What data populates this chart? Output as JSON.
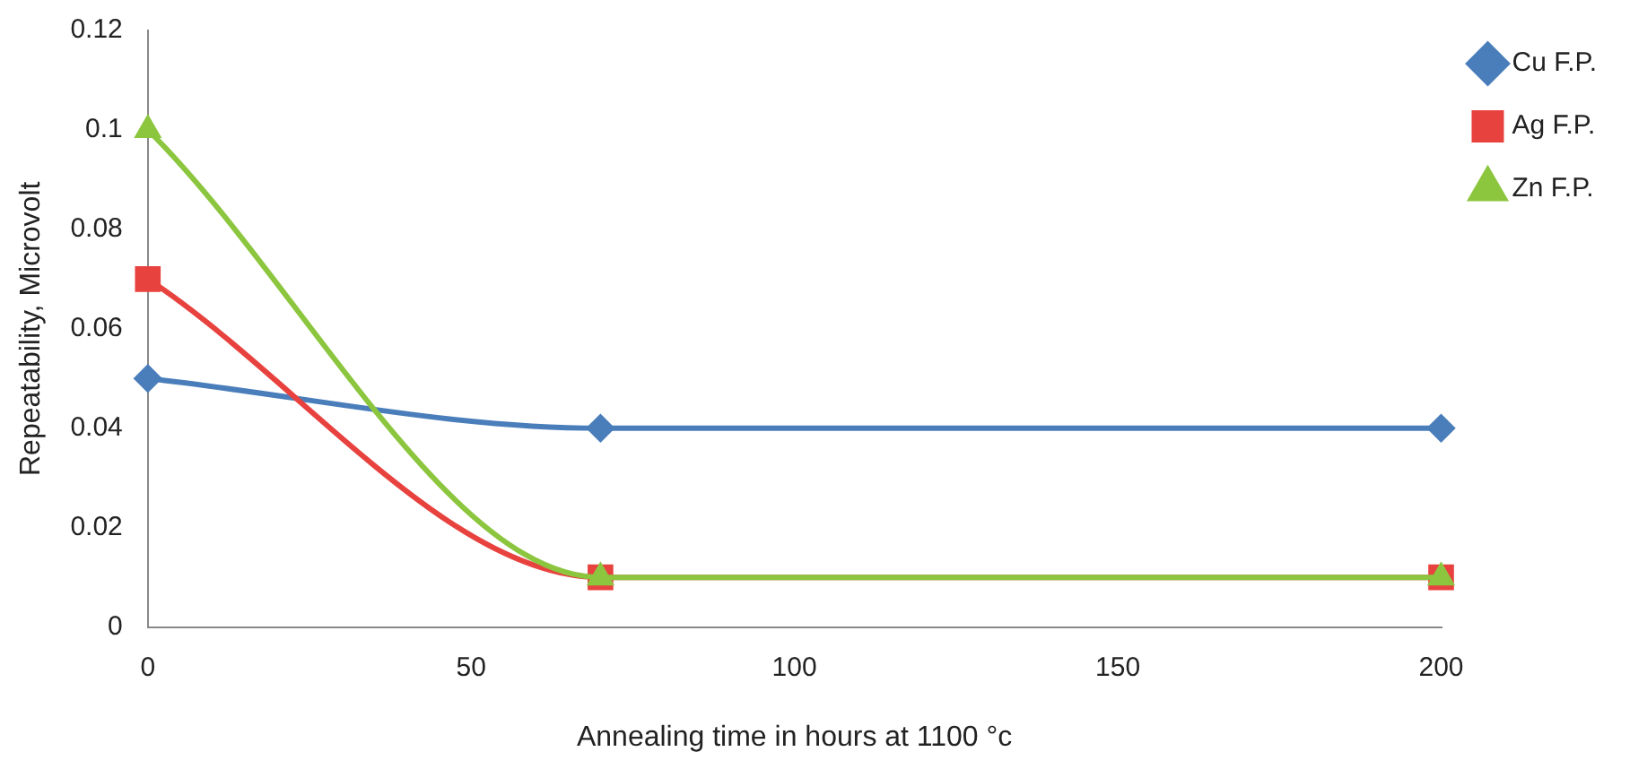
{
  "chart_data": {
    "type": "line",
    "xlabel": "Annealing time in hours at 1100 °c",
    "ylabel": "Repeatability, Microvolt",
    "x": [
      0,
      70,
      200
    ],
    "series": [
      {
        "name": "Cu F.P.",
        "color": "#4a7ebb",
        "marker": "diamond",
        "values": [
          0.05,
          0.04,
          0.04
        ]
      },
      {
        "name": "Ag F.P.",
        "color": "#e8423f",
        "marker": "square",
        "values": [
          0.07,
          0.01,
          0.01
        ]
      },
      {
        "name": "Zn F.P.",
        "color": "#8cc63f",
        "marker": "triangle",
        "values": [
          0.1,
          0.01,
          0.01
        ]
      }
    ],
    "xlim": [
      0,
      200
    ],
    "xticks": [
      0,
      50,
      100,
      150,
      200
    ],
    "ylim": [
      0,
      0.12
    ],
    "yticks": [
      0,
      0.02,
      0.04,
      0.06,
      0.08,
      0.1,
      0.12
    ],
    "grid": false,
    "legend": "top right",
    "line_style": "solid"
  }
}
